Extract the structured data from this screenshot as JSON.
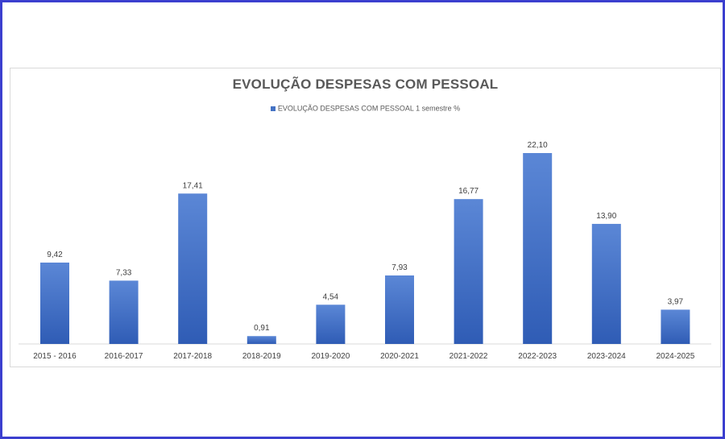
{
  "chart_data": {
    "type": "bar",
    "title": "EVOLUÇÃO DESPESAS COM PESSOAL",
    "legend_position": "top",
    "grid": false,
    "categories": [
      "2015 - 2016",
      "2016-2017",
      "2017-2018",
      "2018-2019",
      "2019-2020",
      "2020-2021",
      "2021-2022",
      "2022-2023",
      "2023-2024",
      "2024-2025"
    ],
    "series": [
      {
        "name": "EVOLUÇÃO DESPESAS COM PESSOAL 1 semestre %",
        "values": [
          9.42,
          7.33,
          17.41,
          0.91,
          4.54,
          7.93,
          16.77,
          22.1,
          13.9,
          3.97
        ],
        "labels": [
          "9,42",
          "7,33",
          "17,41",
          "0,91",
          "4,54",
          "7,93",
          "16,77",
          "22,10",
          "13,90",
          "3,97"
        ],
        "color": "#4472c4"
      }
    ],
    "ylim": [
      0,
      22.1
    ]
  }
}
